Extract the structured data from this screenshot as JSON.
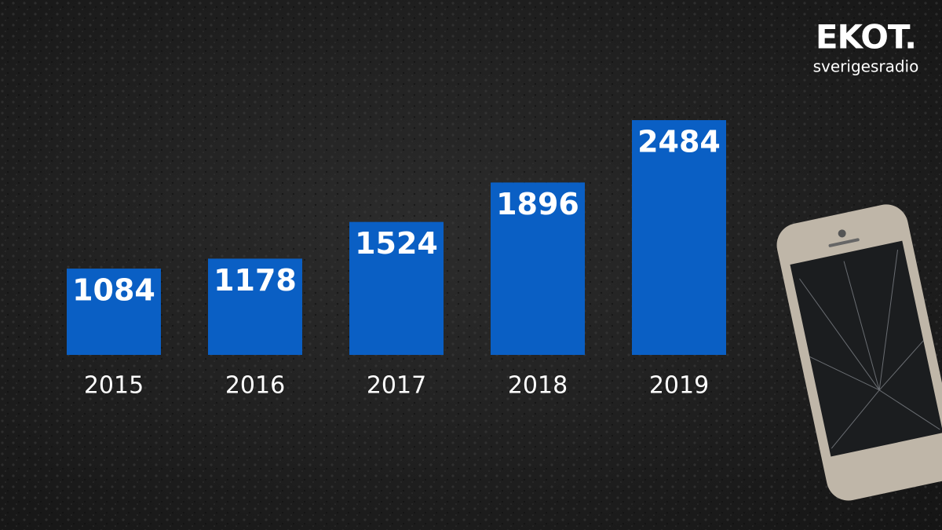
{
  "chart_data": {
    "type": "bar",
    "categories": [
      "2015",
      "2016",
      "2017",
      "2018",
      "2019"
    ],
    "values": [
      1084,
      1178,
      1524,
      1896,
      2484
    ],
    "color": "#0a5fc4",
    "ylim": [
      270,
      2484
    ]
  },
  "logo": {
    "title": "EKOT.",
    "subtitle": "sverigesradio"
  }
}
